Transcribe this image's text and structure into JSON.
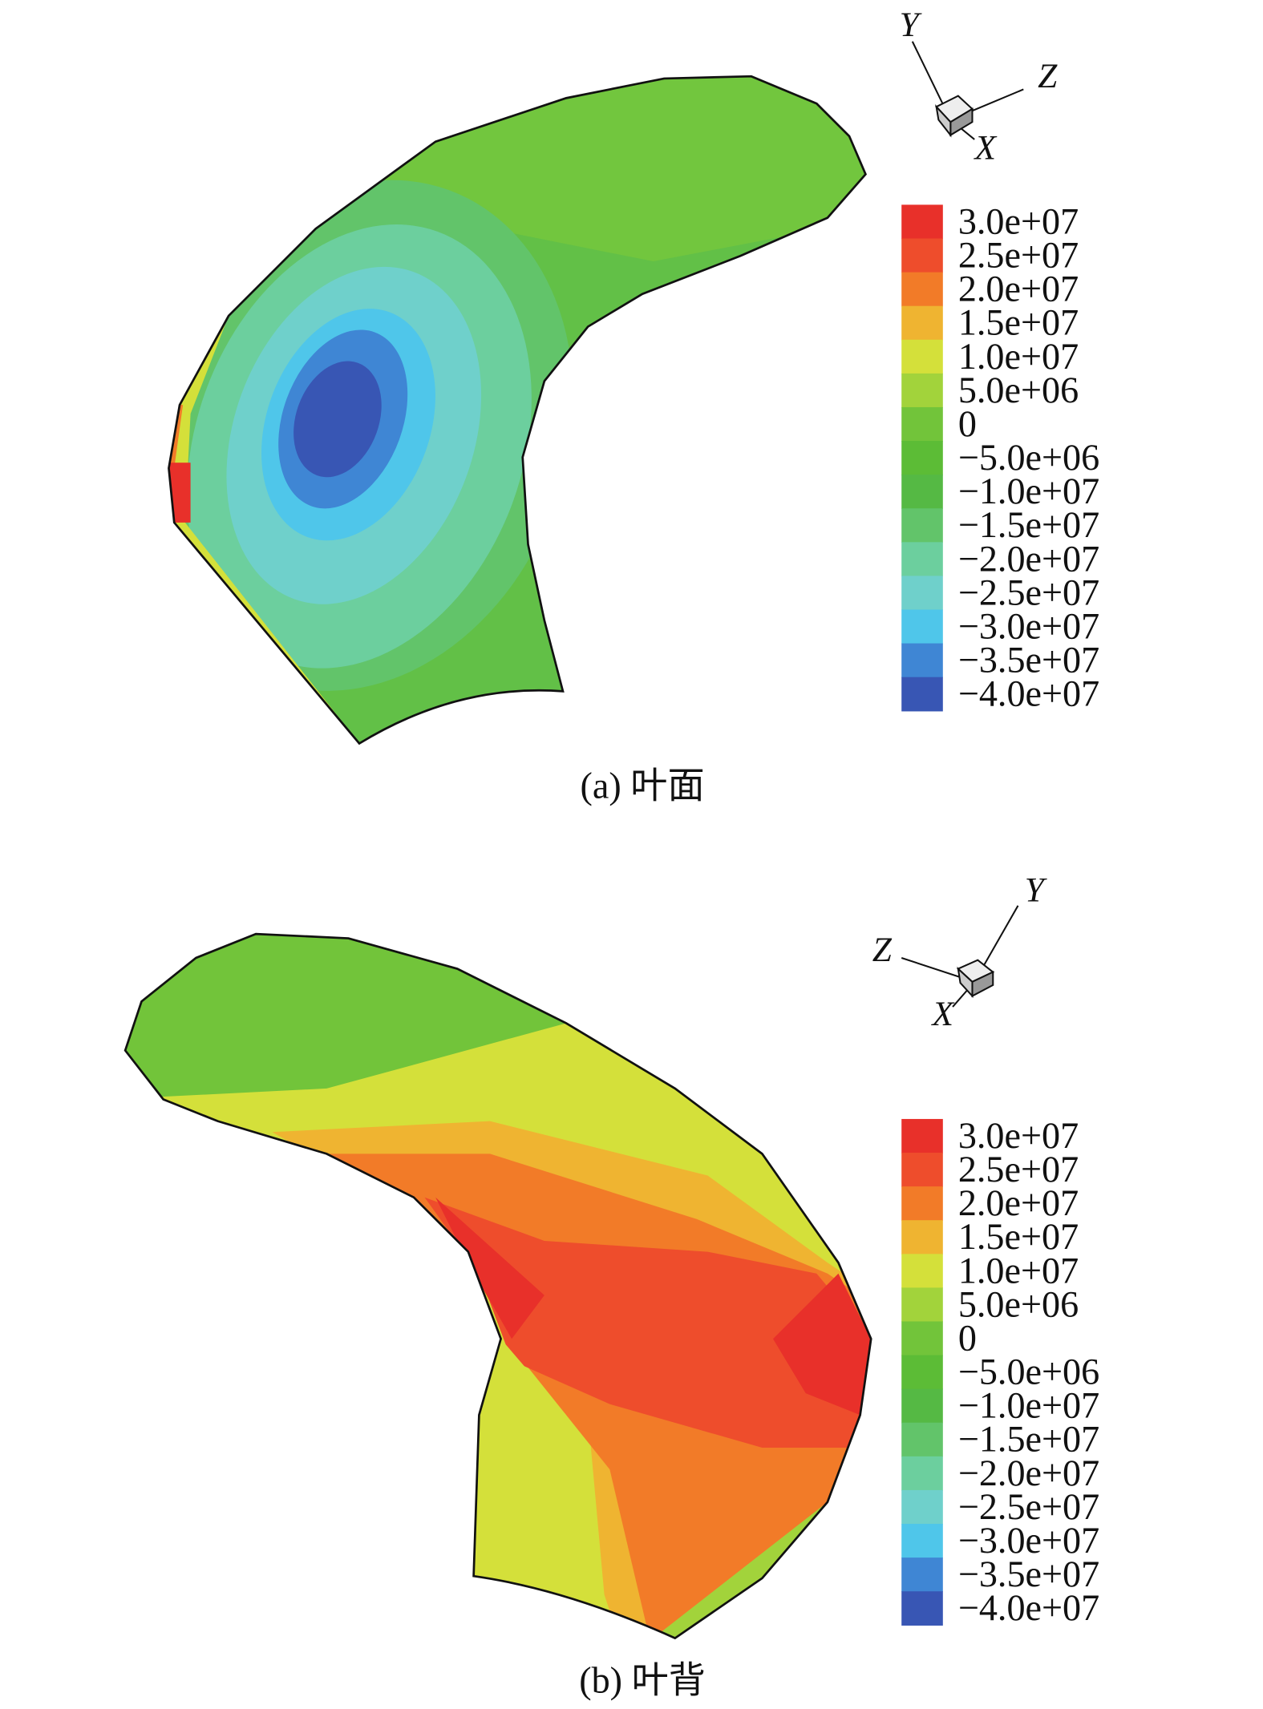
{
  "panels": [
    {
      "caption": "(a) 叶面",
      "axes": {
        "y": "Y",
        "z": "Z",
        "x": "X"
      },
      "legend": [
        {
          "value": 30000000,
          "label": "3.0e+07",
          "color": "#e8302a"
        },
        {
          "value": 25000000,
          "label": "2.5e+07",
          "color": "#ee4d2c"
        },
        {
          "value": 20000000,
          "label": "2.0e+07",
          "color": "#f27b28"
        },
        {
          "value": 15000000,
          "label": "1.5e+07",
          "color": "#efb431"
        },
        {
          "value": 10000000,
          "label": "1.0e+07",
          "color": "#d4e03a"
        },
        {
          "value": 5000000,
          "label": "5.0e+06",
          "color": "#a2d33b"
        },
        {
          "value": 0,
          "label": "0",
          "color": "#72c43a"
        },
        {
          "value": -5000000,
          "label": "−5.0e+06",
          "color": "#5cbc36"
        },
        {
          "value": -10000000,
          "label": "−1.0e+07",
          "color": "#55b944"
        },
        {
          "value": -15000000,
          "label": "−1.5e+07",
          "color": "#62c46a"
        },
        {
          "value": -20000000,
          "label": "−2.0e+07",
          "color": "#6ccf9e"
        },
        {
          "value": -25000000,
          "label": "−2.5e+07",
          "color": "#6fd0cb"
        },
        {
          "value": -30000000,
          "label": "−3.0e+07",
          "color": "#4fc6ea"
        },
        {
          "value": -35000000,
          "label": "−3.5e+07",
          "color": "#3f86d4"
        },
        {
          "value": -40000000,
          "label": "−4.0e+07",
          "color": "#3856b4"
        }
      ]
    },
    {
      "caption": "(b) 叶背",
      "axes": {
        "y": "Y",
        "z": "Z",
        "x": "X"
      },
      "legend": [
        {
          "value": 30000000,
          "label": "3.0e+07",
          "color": "#e8302a"
        },
        {
          "value": 25000000,
          "label": "2.5e+07",
          "color": "#ee4d2c"
        },
        {
          "value": 20000000,
          "label": "2.0e+07",
          "color": "#f27b28"
        },
        {
          "value": 15000000,
          "label": "1.5e+07",
          "color": "#efb431"
        },
        {
          "value": 10000000,
          "label": "1.0e+07",
          "color": "#d4e03a"
        },
        {
          "value": 5000000,
          "label": "5.0e+06",
          "color": "#a2d33b"
        },
        {
          "value": 0,
          "label": "0",
          "color": "#72c43a"
        },
        {
          "value": -5000000,
          "label": "−5.0e+06",
          "color": "#5cbc36"
        },
        {
          "value": -10000000,
          "label": "−1.0e+07",
          "color": "#55b944"
        },
        {
          "value": -15000000,
          "label": "−1.5e+07",
          "color": "#62c46a"
        },
        {
          "value": -20000000,
          "label": "−2.0e+07",
          "color": "#6ccf9e"
        },
        {
          "value": -25000000,
          "label": "−2.5e+07",
          "color": "#6fd0cb"
        },
        {
          "value": -30000000,
          "label": "−3.0e+07",
          "color": "#4fc6ea"
        },
        {
          "value": -35000000,
          "label": "−3.5e+07",
          "color": "#3f86d4"
        },
        {
          "value": -40000000,
          "label": "−4.0e+07",
          "color": "#3856b4"
        }
      ]
    }
  ]
}
